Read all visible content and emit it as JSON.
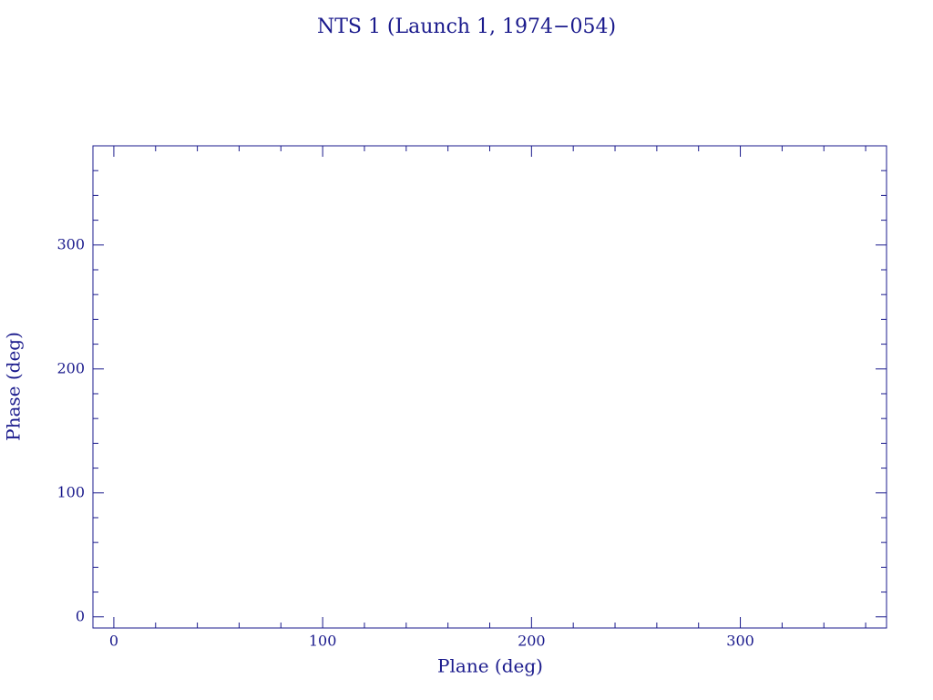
{
  "chart_data": {
    "type": "scatter",
    "title": "NTS 1 (Launch 1, 1974−054)",
    "x_label": "Plane (deg)",
    "y_label": "Phase (deg)",
    "xlim": [
      -10,
      370
    ],
    "ylim": [
      -9,
      380
    ],
    "xticks": [
      0,
      100,
      200,
      300
    ],
    "yticks": [
      0,
      100,
      200,
      300
    ],
    "xminorticks": [
      20,
      40,
      60,
      80,
      120,
      140,
      160,
      180,
      220,
      240,
      260,
      280,
      320,
      340,
      360
    ],
    "yminorticks": [
      20,
      40,
      60,
      80,
      120,
      140,
      160,
      180,
      220,
      240,
      260,
      280,
      320,
      340,
      360
    ],
    "color": "#1a1a8c"
  }
}
